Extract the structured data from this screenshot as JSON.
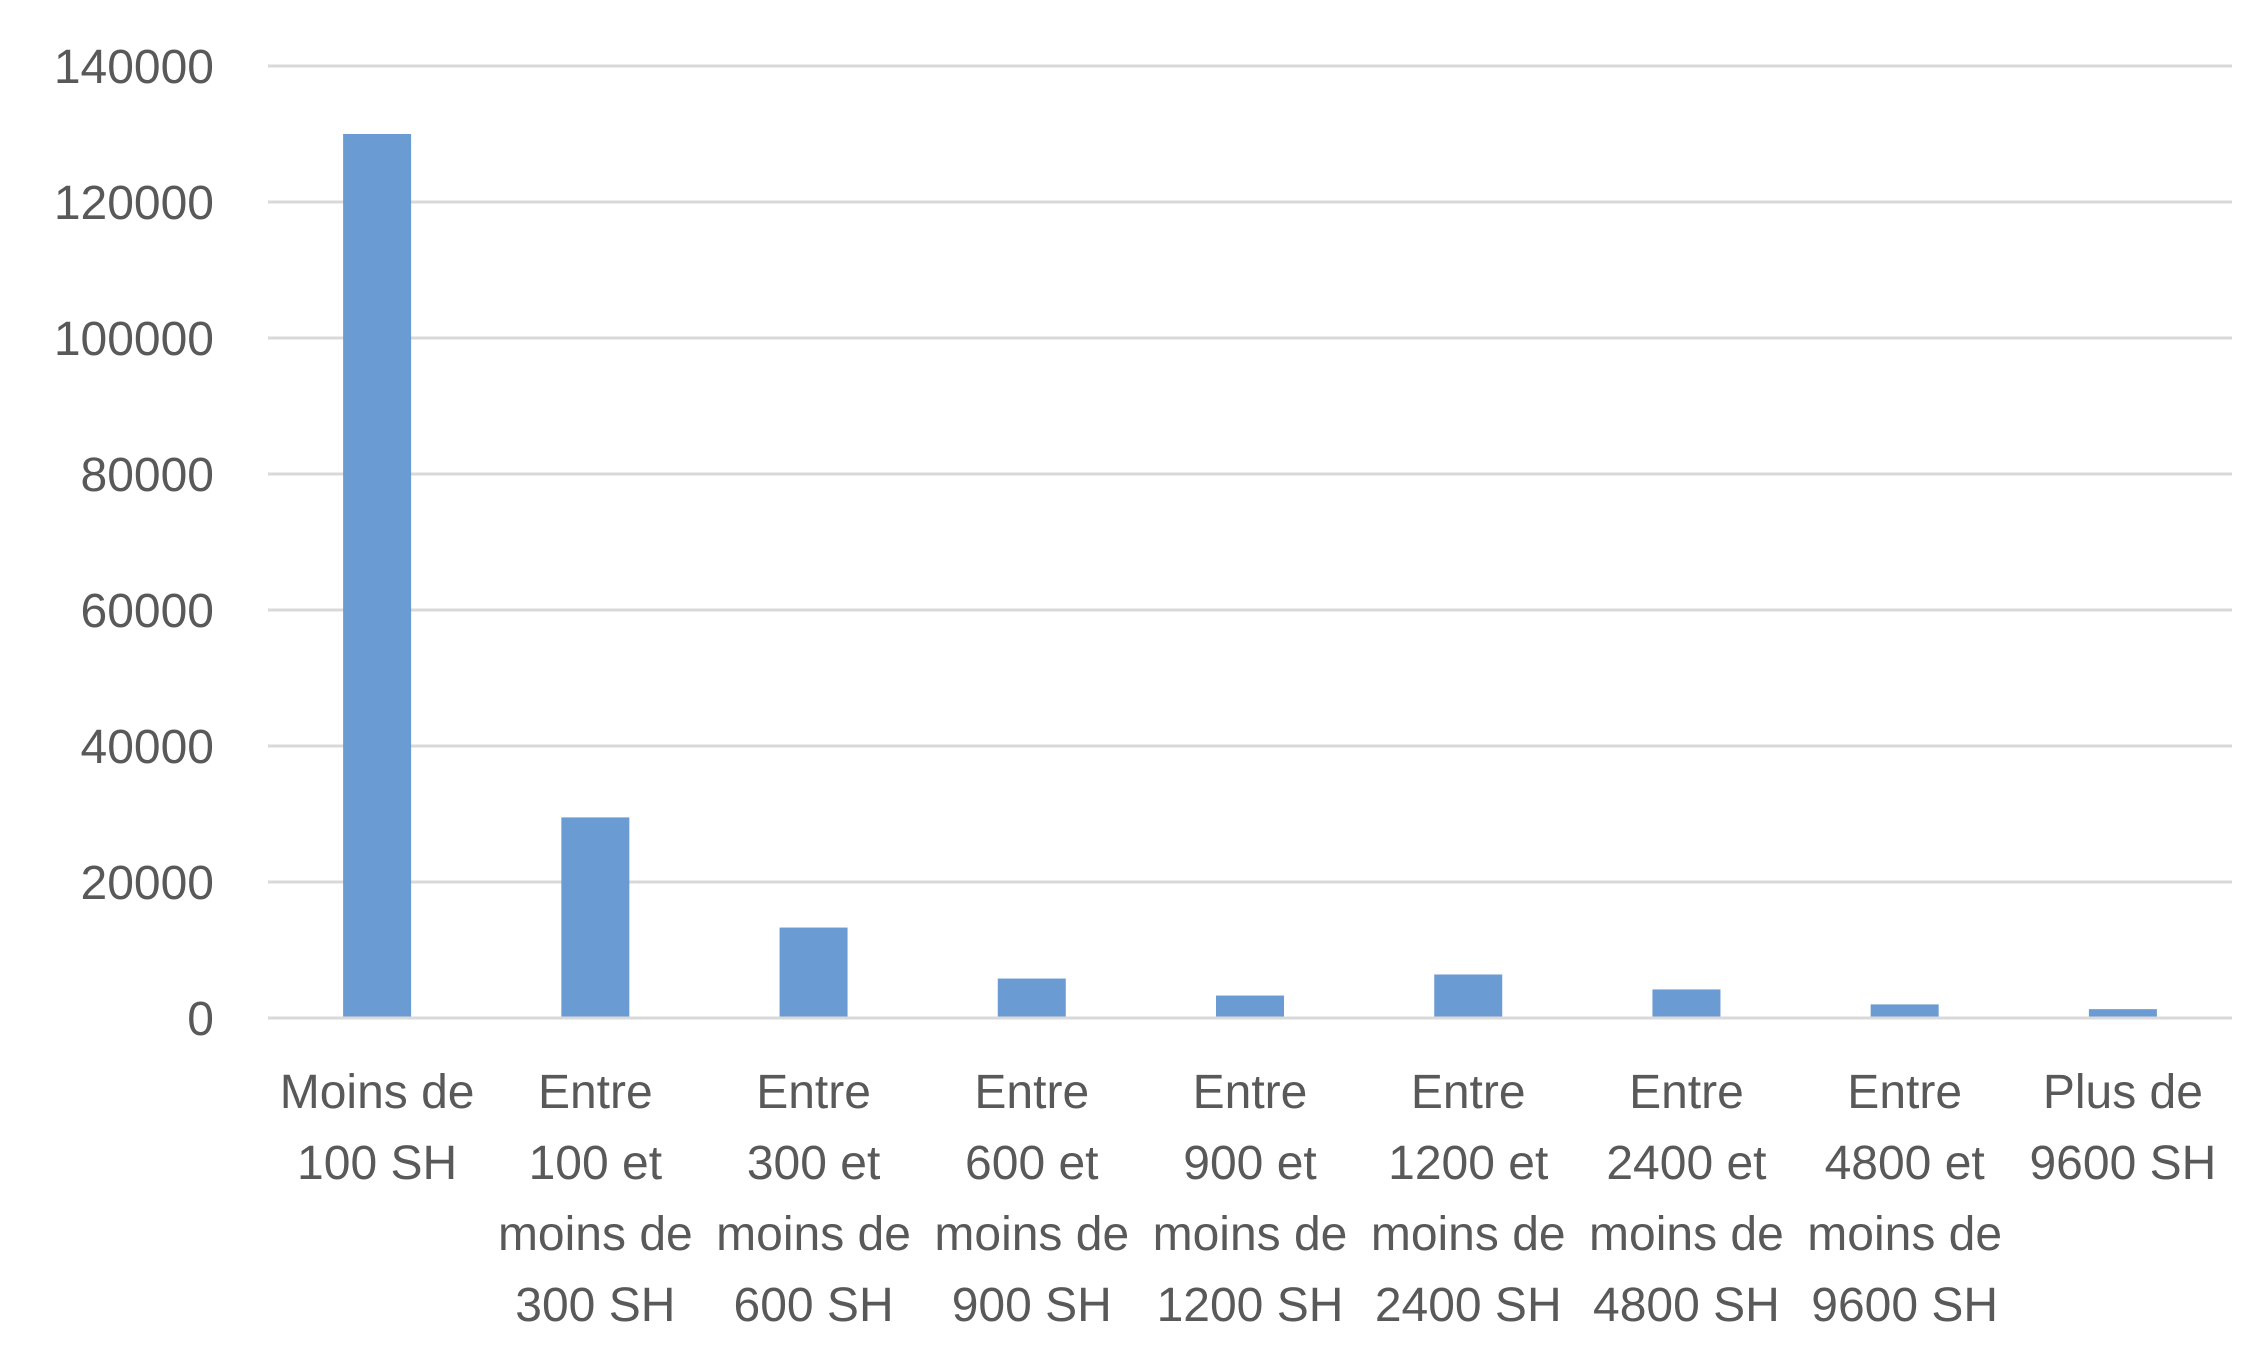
{
  "chart_data": {
    "type": "bar",
    "title": "",
    "xlabel": "",
    "ylabel": "",
    "ylim": [
      0,
      140000
    ],
    "yticks": [
      "0",
      "20000",
      "40000",
      "60000",
      "80000",
      "100000",
      "120000",
      "140000"
    ],
    "grid": true,
    "legend": "none",
    "bar_color": "#6a9bd2",
    "categories": [
      [
        "Moins de",
        "100 SH"
      ],
      [
        "Entre",
        "100 et",
        "moins de",
        "300 SH"
      ],
      [
        "Entre",
        "300 et",
        "moins de",
        "600 SH"
      ],
      [
        "Entre",
        "600 et",
        "moins de",
        "900 SH"
      ],
      [
        "Entre",
        "900 et",
        "moins de",
        "1200 SH"
      ],
      [
        "Entre",
        "1200 et",
        "moins de",
        "2400 SH"
      ],
      [
        "Entre",
        "2400 et",
        "moins de",
        "4800 SH"
      ],
      [
        "Entre",
        "4800 et",
        "moins de",
        "9600 SH"
      ],
      [
        "Plus de",
        "9600 SH"
      ]
    ],
    "values": [
      130000,
      29500,
      13300,
      5800,
      3300,
      6400,
      4200,
      2000,
      1300
    ]
  }
}
